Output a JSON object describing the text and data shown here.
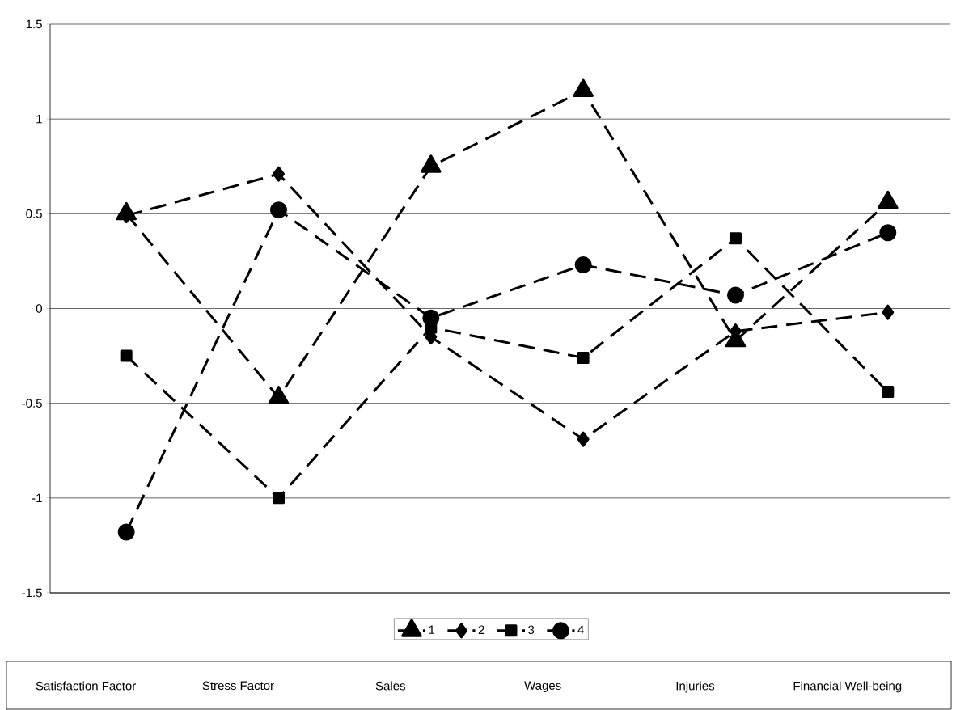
{
  "chart_data": {
    "type": "line",
    "categories": [
      "Satisfaction Factor",
      "Stress Factor",
      "Sales",
      "Wages",
      "Injuries",
      "Financial Well-being"
    ],
    "series": [
      {
        "name": "1",
        "color": "#000000",
        "marker": "triangle",
        "line_style": "dashed",
        "values": [
          0.5,
          -0.47,
          0.75,
          1.15,
          -0.17,
          0.56
        ]
      },
      {
        "name": "2",
        "color": "#000000",
        "marker": "diamond",
        "line_style": "dashed",
        "values": [
          0.49,
          0.71,
          -0.15,
          -0.69,
          -0.12,
          -0.02
        ]
      },
      {
        "name": "3",
        "color": "#000000",
        "marker": "square",
        "line_style": "dashed",
        "values": [
          -0.25,
          -1.0,
          -0.1,
          -0.26,
          0.37,
          -0.44
        ]
      },
      {
        "name": "4",
        "color": "#000000",
        "marker": "circle",
        "line_style": "dashed",
        "values": [
          -1.18,
          0.52,
          -0.05,
          0.23,
          0.07,
          0.4
        ]
      }
    ],
    "ylim": [
      -1.5,
      1.5
    ],
    "yticks": [
      -1.5,
      -1,
      -0.5,
      0,
      0.5,
      1,
      1.5
    ],
    "grid": "y",
    "legend": "bottom"
  }
}
